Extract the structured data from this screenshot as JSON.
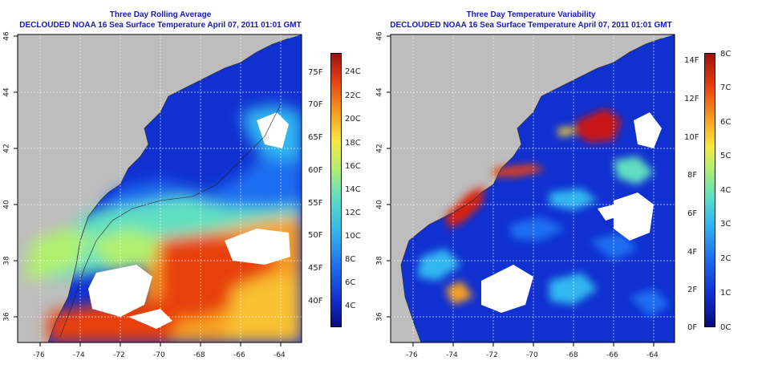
{
  "panels": [
    {
      "id": "avg",
      "title_line1": "Three Day Rolling Average",
      "title_line2": "DECLOUDED NOAA 16 Sea Surface Temperature April 07, 2011 01:01 GMT",
      "colorbar": {
        "type": "temperature",
        "f_labels": [
          "75F",
          "70F",
          "65F",
          "60F",
          "55F",
          "50F",
          "45F",
          "40F"
        ],
        "c_labels": [
          "24C",
          "22C",
          "20C",
          "18C",
          "16C",
          "14C",
          "12C",
          "10C",
          "8C",
          "6C",
          "4C"
        ]
      }
    },
    {
      "id": "var",
      "title_line1": "Three Day Temperature Variability",
      "title_line2": "DECLOUDED NOAA 16 Sea Surface Temperature April 07, 2011 01:01 GMT",
      "colorbar": {
        "type": "variability",
        "f_labels": [
          "14F",
          "12F",
          "10F",
          "8F",
          "6F",
          "4F",
          "2F",
          "0F"
        ],
        "c_labels": [
          "8C",
          "7C",
          "6C",
          "5C",
          "4C",
          "3C",
          "2C",
          "1C",
          "0C"
        ]
      }
    }
  ],
  "lat_ticks": [
    "46",
    "44",
    "42",
    "40",
    "38",
    "36"
  ],
  "lon_ticks": [
    "-76",
    "-74",
    "-72",
    "-70",
    "-68",
    "-66",
    "-64"
  ],
  "colors": {
    "land": "#bdbdbd",
    "title": "#1a1ab0",
    "sst_scale": [
      "#0a0a80",
      "#1030d0",
      "#1e6ef0",
      "#30b8f0",
      "#60e0c0",
      "#b0f070",
      "#f8e840",
      "#f8a020",
      "#e84010",
      "#a01010"
    ]
  }
}
